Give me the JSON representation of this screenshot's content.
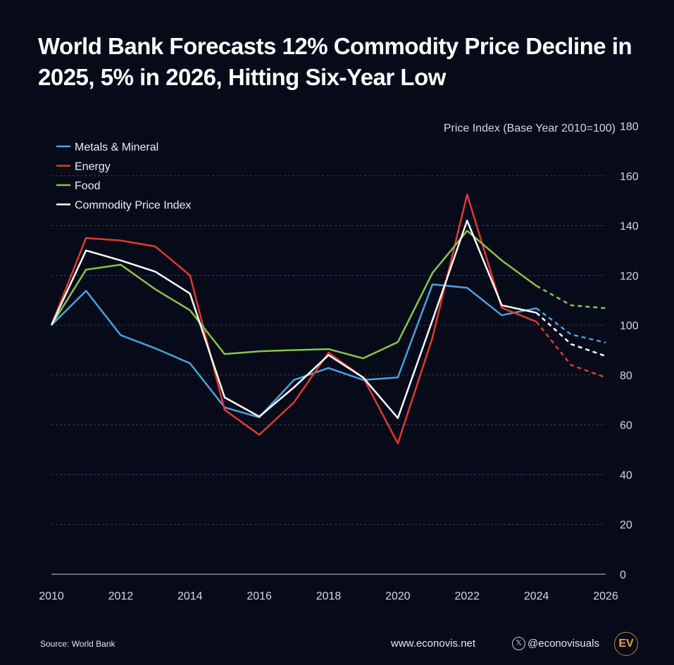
{
  "title": "World Bank Forecasts 12% Commodity Price Decline in 2025, 5% in 2026, Hitting Six-Year Low",
  "footer": {
    "source": "Source: World Bank",
    "website": "www.econovis.net",
    "handle": "@econovisuals",
    "logo": "EV",
    "x_icon": "x-logo-icon"
  },
  "chart_data": {
    "type": "line",
    "ylabel": "Price Index (Base Year 2010=100)",
    "ylim": [
      0,
      180
    ],
    "yticks": [
      0,
      20,
      40,
      60,
      80,
      100,
      120,
      140,
      160,
      180
    ],
    "xticks": [
      2010,
      2012,
      2014,
      2016,
      2018,
      2020,
      2022,
      2024,
      2026
    ],
    "grid": "horizontal dashed",
    "legend": "top-left",
    "forecast_from": 2024,
    "x": [
      2010,
      2011,
      2012,
      2013,
      2014,
      2015,
      2016,
      2017,
      2018,
      2019,
      2020,
      2021,
      2022,
      2023,
      2024,
      2025,
      2026
    ],
    "series": [
      {
        "name": "Metals  & Mineral",
        "color": "#4aa3df",
        "values": [
          100,
          113.8,
          96,
          90.7,
          84.7,
          67,
          63,
          78,
          82.8,
          78,
          79,
          116.4,
          115,
          104,
          106.8,
          96.3,
          93
        ]
      },
      {
        "name": "Energy",
        "color": "#e03a2f",
        "values": [
          100,
          135,
          134,
          131.6,
          120,
          66,
          56,
          69,
          89,
          79,
          52.5,
          95,
          152.5,
          107,
          101.4,
          84,
          79
        ]
      },
      {
        "name": "Food",
        "color": "#8bc34a",
        "values": [
          100,
          122.3,
          124.3,
          114.4,
          106,
          88.4,
          89.5,
          90,
          90.4,
          86.7,
          93.2,
          121,
          137.9,
          126,
          115.8,
          108,
          106.8
        ]
      },
      {
        "name": "Commodity Price Index",
        "color": "#ffffff",
        "values": [
          100,
          130,
          126,
          121.5,
          112.7,
          71,
          63.3,
          75,
          88,
          79,
          62.7,
          102,
          142,
          108,
          105,
          92.4,
          87.6
        ]
      }
    ]
  }
}
